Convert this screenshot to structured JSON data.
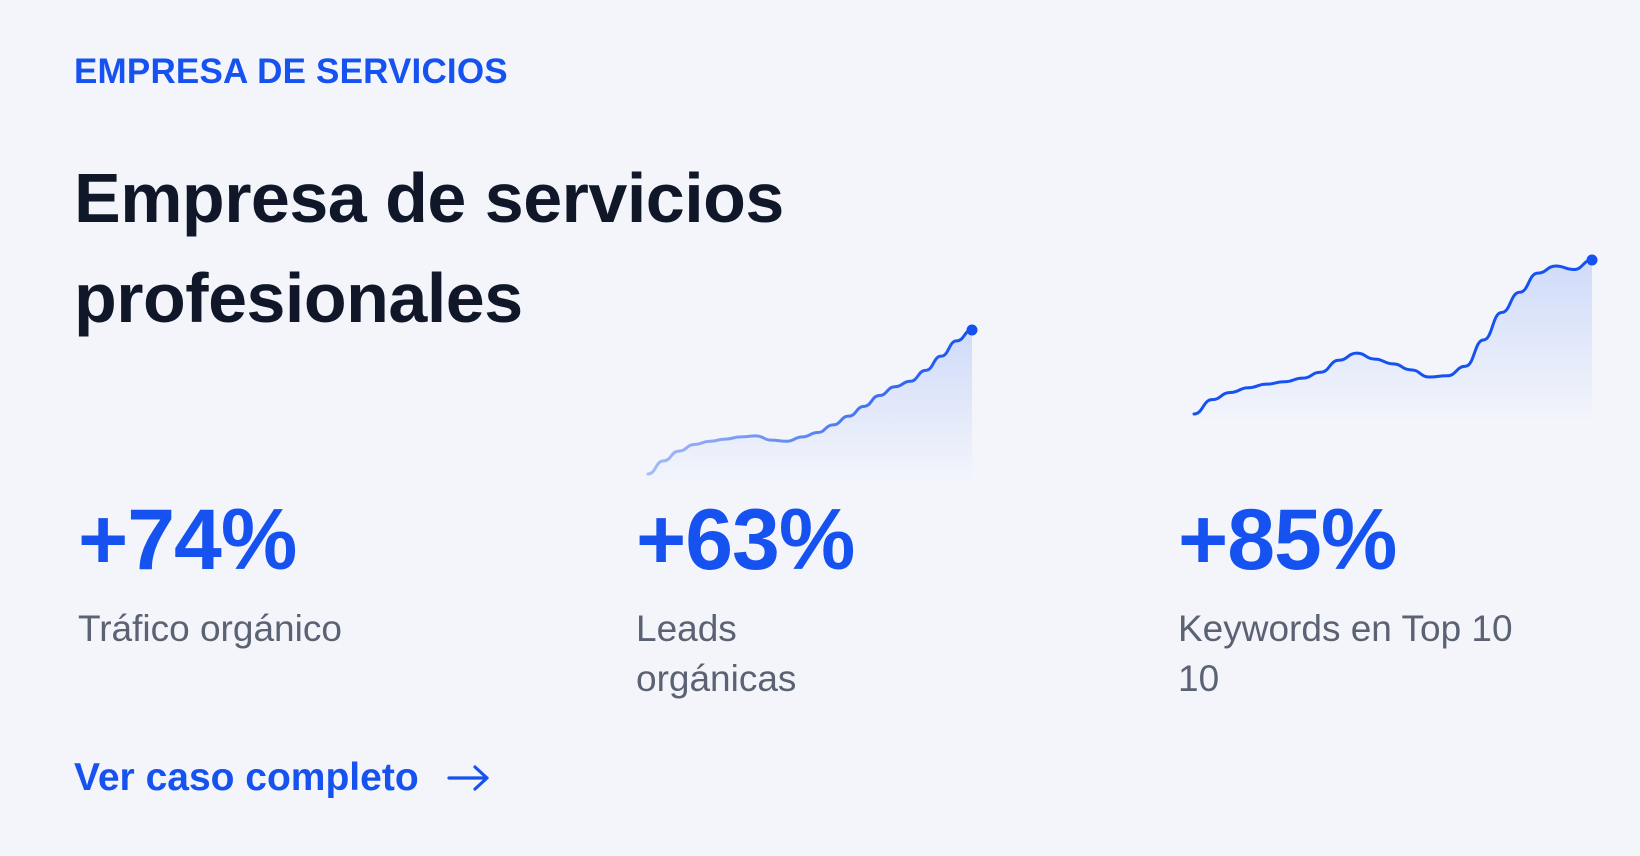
{
  "eyebrow": "EMPRESA DE SERVICIOS",
  "title": "Empresa de servicios profesionales",
  "metrics": [
    {
      "value": "+74%",
      "label": "Tráfico orgánico"
    },
    {
      "value": "+63%",
      "label": "Leads orgánicas"
    },
    {
      "value": "+85%",
      "label": "Keywords en Top 10 10"
    }
  ],
  "cta": {
    "label": "Ver caso completo",
    "icon": "arrow-right-icon"
  },
  "colors": {
    "accent": "#1652f0",
    "heading": "#0f1729",
    "muted": "#5a6273",
    "background": "#f3f5fb"
  },
  "sparklines": [
    {
      "trend": "up",
      "values": [
        10,
        22,
        31,
        37,
        40,
        42,
        44,
        45,
        41,
        40,
        44,
        48,
        55,
        63,
        72,
        82,
        90,
        95,
        105,
        118,
        132,
        142
      ]
    },
    {
      "trend": "up",
      "values": [
        10,
        22,
        28,
        32,
        35,
        37,
        40,
        45,
        55,
        61,
        56,
        52,
        47,
        41,
        42,
        50,
        72,
        95,
        112,
        128,
        134,
        131,
        139
      ]
    }
  ]
}
